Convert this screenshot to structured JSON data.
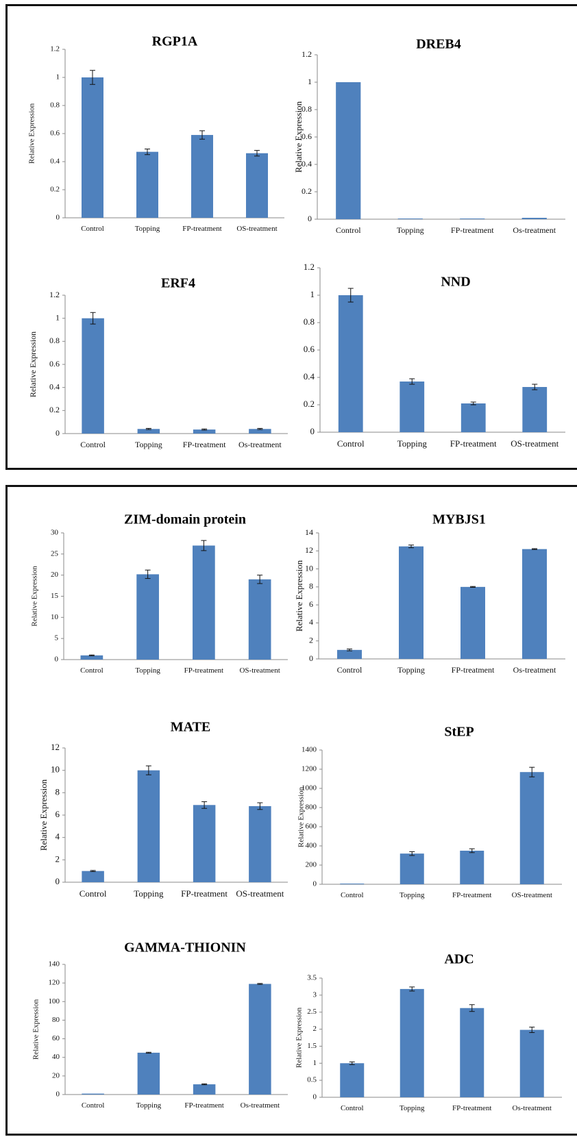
{
  "chart_data": [
    {
      "type": "bar",
      "title": "RGP1A",
      "ylabel": "Relative Expression",
      "xlabel": "",
      "categories": [
        "Control",
        "Topping",
        "FP-treatment",
        "OS-treatment"
      ],
      "values": [
        1.0,
        0.47,
        0.59,
        0.46
      ],
      "errors": [
        0.05,
        0.02,
        0.03,
        0.02
      ],
      "ylim": [
        0,
        1.2
      ],
      "yticks": [
        "0",
        "0.2",
        "0.4",
        "0.6",
        "0.8",
        "1",
        "1.2"
      ],
      "color": "#4f81bd"
    },
    {
      "type": "bar",
      "title": "DREB4",
      "ylabel": "Relative Expression",
      "xlabel": "",
      "categories": [
        "Control",
        "Topping",
        "FP-treatment",
        "Os-treatment"
      ],
      "values": [
        1.0,
        0.005,
        0.005,
        0.01
      ],
      "errors": [
        0,
        0,
        0,
        0
      ],
      "ylim": [
        0,
        1.2
      ],
      "yticks": [
        "0",
        "0.2",
        "0.4",
        "0.6",
        "0.8",
        "1",
        "1.2"
      ],
      "color": "#4f81bd"
    },
    {
      "type": "bar",
      "title": "ERF4",
      "ylabel": "Relative Expression",
      "xlabel": "",
      "categories": [
        "Control",
        "Topping",
        "FP-treatment",
        "Os-treatment"
      ],
      "values": [
        1.0,
        0.04,
        0.035,
        0.04
      ],
      "errors": [
        0.05,
        0.005,
        0.005,
        0.005
      ],
      "ylim": [
        0,
        1.2
      ],
      "yticks": [
        "0",
        "0.2",
        "0.4",
        "0.6",
        "0.8",
        "1",
        "1.2"
      ],
      "color": "#4f81bd"
    },
    {
      "type": "bar",
      "title": "NND",
      "ylabel": "",
      "xlabel": "",
      "categories": [
        "Control",
        "Topping",
        "FP-treatment",
        "OS-treatment"
      ],
      "values": [
        1.0,
        0.37,
        0.21,
        0.33
      ],
      "errors": [
        0.05,
        0.02,
        0.01,
        0.02
      ],
      "ylim": [
        0,
        1.2
      ],
      "yticks": [
        "0",
        "0.2",
        "0.4",
        "0.6",
        "0.8",
        "1",
        "1.2"
      ],
      "color": "#4f81bd"
    },
    {
      "type": "bar",
      "title": "ZIM-domain protein",
      "ylabel": "Relative Expression",
      "xlabel": "",
      "categories": [
        "Control",
        "Topping",
        "FP-treatment",
        "OS-treatment"
      ],
      "values": [
        1.0,
        20.2,
        27.0,
        19.0
      ],
      "errors": [
        0.1,
        1.0,
        1.2,
        1.0
      ],
      "ylim": [
        0,
        30
      ],
      "yticks": [
        "0",
        "5",
        "10",
        "15",
        "20",
        "25",
        "30"
      ],
      "color": "#4f81bd"
    },
    {
      "type": "bar",
      "title": "MYBJS1",
      "ylabel": "Relative Expression",
      "xlabel": "",
      "categories": [
        "Control",
        "Topping",
        "FP-treatment",
        "Os-treatment"
      ],
      "values": [
        1.0,
        12.5,
        8.0,
        12.2
      ],
      "errors": [
        0.1,
        0.15,
        0.05,
        0.05
      ],
      "ylim": [
        0,
        14
      ],
      "yticks": [
        "0",
        "2",
        "4",
        "6",
        "8",
        "10",
        "12",
        "14"
      ],
      "color": "#4f81bd"
    },
    {
      "type": "bar",
      "title": "MATE",
      "ylabel": "Relative Expression",
      "xlabel": "",
      "categories": [
        "Control",
        "Topping",
        "FP-treatment",
        "OS-treatment"
      ],
      "values": [
        1.0,
        10.0,
        6.9,
        6.8
      ],
      "errors": [
        0.05,
        0.4,
        0.3,
        0.3
      ],
      "ylim": [
        0,
        12
      ],
      "yticks": [
        "0",
        "2",
        "4",
        "6",
        "8",
        "10",
        "12"
      ],
      "color": "#4f81bd"
    },
    {
      "type": "bar",
      "title": "StEP",
      "ylabel": "Relative Expression",
      "xlabel": "",
      "categories": [
        "Control",
        "Topping",
        "FP-treatment",
        "OS-treatment"
      ],
      "values": [
        1.0,
        320,
        350,
        1170
      ],
      "errors": [
        0,
        20,
        20,
        50
      ],
      "ylim": [
        0,
        1400
      ],
      "yticks": [
        "0",
        "200",
        "400",
        "600",
        "800",
        "1000",
        "1200",
        "1400"
      ],
      "color": "#4f81bd"
    },
    {
      "type": "bar",
      "title": "GAMMA-THIONIN",
      "ylabel": "Relative Expression",
      "xlabel": "",
      "categories": [
        "Control",
        "Topping",
        "FP-treatment",
        "Os-treatment"
      ],
      "values": [
        1.0,
        45,
        11,
        119
      ],
      "errors": [
        0,
        0.5,
        0.5,
        0.5
      ],
      "ylim": [
        0,
        140
      ],
      "yticks": [
        "0",
        "20",
        "40",
        "60",
        "80",
        "100",
        "120",
        "140"
      ],
      "color": "#4f81bd"
    },
    {
      "type": "bar",
      "title": "ADC",
      "ylabel": "Relative Expression",
      "xlabel": "",
      "categories": [
        "Control",
        "Topping",
        "FP-treatment",
        "Os-treatment"
      ],
      "values": [
        1.0,
        3.18,
        2.62,
        1.98
      ],
      "errors": [
        0.04,
        0.06,
        0.1,
        0.08
      ],
      "ylim": [
        0,
        3.5
      ],
      "yticks": [
        "0",
        "0.5",
        "1",
        "1.5",
        "2",
        "2.5",
        "3",
        "3.5"
      ],
      "color": "#4f81bd"
    }
  ]
}
